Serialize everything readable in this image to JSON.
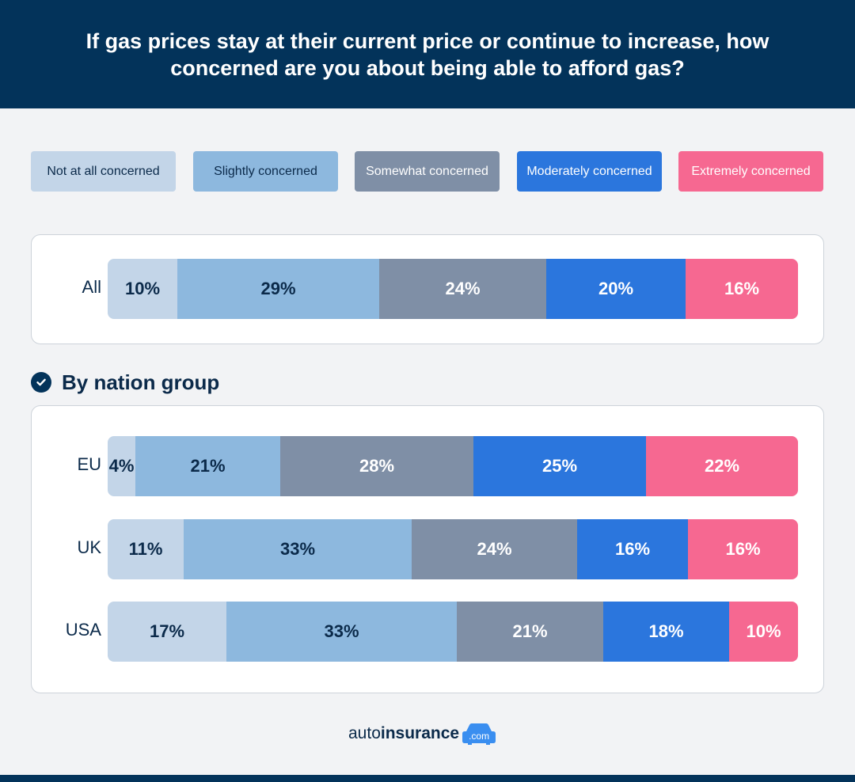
{
  "chart_data": {
    "type": "bar",
    "orientation": "horizontal",
    "stacked": true,
    "title": "If gas prices stay at their current price or continue to increase, how concerned are you about being able to afford gas?",
    "legend_position": "top",
    "series": [
      {
        "name": "Not at all concerned",
        "color": "#c3d5e8",
        "text_color": "#0b2a4a"
      },
      {
        "name": "Slightly concerned",
        "color": "#8db8de",
        "text_color": "#0b2a4a"
      },
      {
        "name": "Somewhat concerned",
        "color": "#7f8fa6",
        "text_color": "#ffffff"
      },
      {
        "name": "Moderately concerned",
        "color": "#2b76dd",
        "text_color": "#ffffff"
      },
      {
        "name": "Extremely concerned",
        "color": "#f66891",
        "text_color": "#ffffff"
      }
    ],
    "overall": {
      "category": "All",
      "values": [
        10,
        29,
        24,
        20,
        16
      ]
    },
    "section_title": "By nation group",
    "groups": [
      {
        "category": "EU",
        "values": [
          4,
          21,
          28,
          25,
          22
        ]
      },
      {
        "category": "UK",
        "values": [
          11,
          33,
          24,
          16,
          16
        ]
      },
      {
        "category": "USA",
        "values": [
          17,
          33,
          21,
          18,
          10
        ]
      }
    ],
    "value_suffix": "%"
  },
  "brand": {
    "part1": "auto",
    "part2": "insurance",
    "tld": ".com",
    "icon": "car-icon",
    "color": "#3a8ef0"
  }
}
